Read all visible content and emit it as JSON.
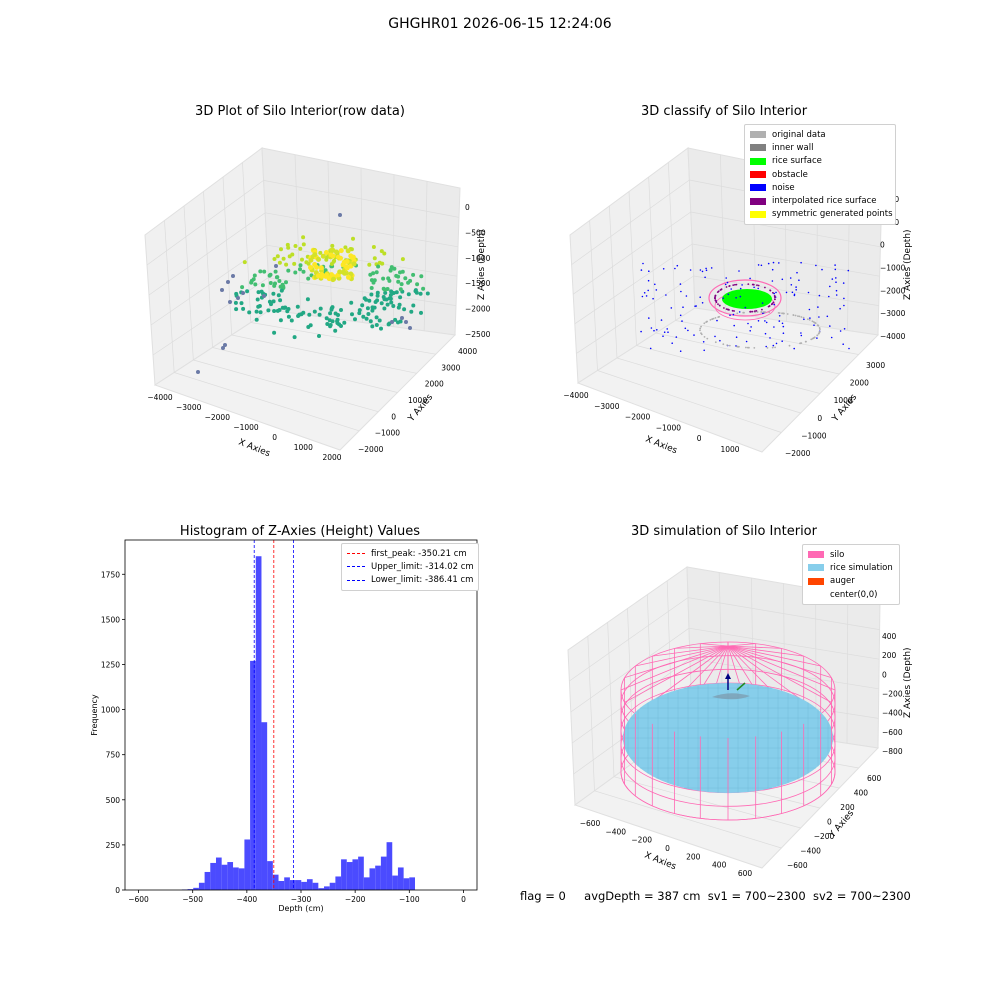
{
  "suptitle": "GHGHR01 2026-06-15 12:24:06",
  "footer": {
    "flag": "flag = 0",
    "avg_depth": "avgDepth = 387 cm",
    "sv1": "sv1 = 700~2300",
    "sv2": "sv2 = 700~2300"
  },
  "colors": {
    "hist_bar": "#4b4bff",
    "first_peak": "#ff0000",
    "limit_line": "#0000ff",
    "silo": "#ff69b4",
    "rice_simulation": "#87ceeb",
    "auger": "#ff4500"
  },
  "chart_data": [
    {
      "type": "scatter",
      "projection": "3d",
      "title": "3D Plot of Silo Interior(row data)",
      "xlabel": "X Axies",
      "ylabel": "Y Axies",
      "zlabel": "Z Axies (Depth)",
      "x_ticks": [
        "−4000",
        "−3000",
        "−2000",
        "−1000",
        "0",
        "1000",
        "2000"
      ],
      "y_ticks": [
        "−2000",
        "−1000",
        "0",
        "1000",
        "2000",
        "3000",
        "4000"
      ],
      "z_ticks": [
        "0",
        "−500",
        "−1000",
        "−1500",
        "−2000",
        "−2500"
      ],
      "colormap": "viridis"
    },
    {
      "type": "scatter",
      "projection": "3d",
      "title": "3D classify of Silo Interior",
      "xlabel": "X Axies",
      "ylabel": "Y Axies",
      "zlabel": "Z Axies (Depth)",
      "x_ticks": [
        "−4000",
        "−3000",
        "−2000",
        "−1000",
        "0",
        "1000"
      ],
      "y_ticks": [
        "−2000",
        "−1000",
        "0",
        "1000",
        "2000",
        "3000"
      ],
      "z_ticks": [
        "2000",
        "1000",
        "0",
        "−1000",
        "−2000",
        "−3000",
        "−4000"
      ],
      "legend": [
        {
          "label": "original data",
          "color": "#b0b0b0"
        },
        {
          "label": "inner wall",
          "color": "#808080"
        },
        {
          "label": "rice surface",
          "color": "#00ff00"
        },
        {
          "label": "obstacle",
          "color": "#ff0000"
        },
        {
          "label": "noise",
          "color": "#0000ff"
        },
        {
          "label": "interpolated rice surface",
          "color": "#800080"
        },
        {
          "label": "symmetric generated points",
          "color": "#ffff00"
        }
      ],
      "legend_position": "top-right"
    },
    {
      "type": "bar",
      "title": "Histogram of Z-Axies (Height) Values",
      "xlabel": "Depth (cm)",
      "ylabel": "Frequency",
      "xlim": [
        -625,
        25
      ],
      "ylim": [
        0,
        1940
      ],
      "x_ticks": [
        "−600",
        "−500",
        "−400",
        "−300",
        "−200",
        "−100",
        "0"
      ],
      "x_tick_values": [
        -600,
        -500,
        -400,
        -300,
        -200,
        -100,
        0
      ],
      "y_ticks": [
        "0",
        "250",
        "500",
        "750",
        "1000",
        "1250",
        "1500",
        "1750"
      ],
      "y_tick_values": [
        0,
        250,
        500,
        750,
        1000,
        1250,
        1500,
        1750
      ],
      "bin_start": -520,
      "bin_width": 10.5,
      "values": [
        3,
        5,
        12,
        40,
        100,
        150,
        180,
        140,
        155,
        125,
        120,
        280,
        1270,
        1850,
        930,
        160,
        85,
        50,
        70,
        55,
        55,
        45,
        60,
        40,
        10,
        20,
        40,
        75,
        170,
        155,
        170,
        185,
        70,
        120,
        135,
        185,
        265,
        80,
        125,
        65,
        70
      ],
      "lines": [
        {
          "label": "first_peak: -350.21 cm",
          "x": -350.21,
          "color": "#ff0000"
        },
        {
          "label": "Upper_limit: -314.02 cm",
          "x": -314.02,
          "color": "#0000ff"
        },
        {
          "label": "Lower_limit: -386.41 cm",
          "x": -386.41,
          "color": "#0000ff"
        }
      ],
      "legend_position": "top-right"
    },
    {
      "type": "surface",
      "projection": "3d",
      "title": "3D simulation of Silo Interior",
      "xlabel": "X Axies",
      "ylabel": "Y Axies",
      "zlabel": "Z Axies (Depth)",
      "x_ticks": [
        "−600",
        "−400",
        "−200",
        "0",
        "200",
        "400",
        "600"
      ],
      "y_ticks": [
        "−600",
        "−400",
        "−200",
        "0",
        "200",
        "400",
        "600"
      ],
      "z_ticks": [
        "400",
        "200",
        "0",
        "−200",
        "−400",
        "−600",
        "−800"
      ],
      "legend": [
        {
          "label": "silo",
          "color": "#ff69b4"
        },
        {
          "label": "rice simulation",
          "color": "#87ceeb"
        },
        {
          "label": "auger",
          "color": "#ff4500"
        },
        {
          "label": "center(0,0)",
          "color": "#ffffff"
        }
      ],
      "legend_position": "top-right"
    }
  ]
}
